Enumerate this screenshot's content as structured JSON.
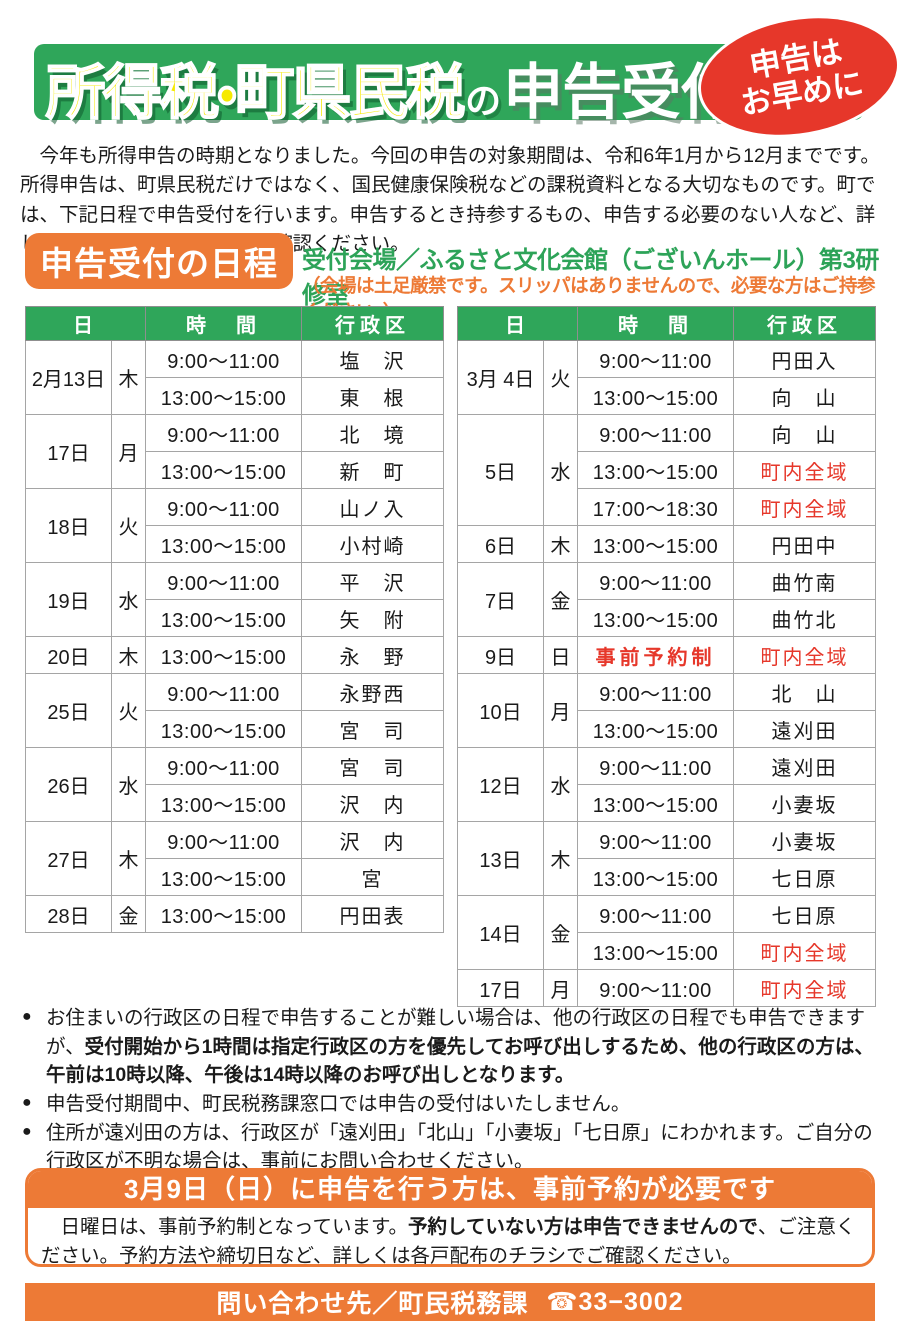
{
  "colors": {
    "green": "#2fa65a",
    "orange": "#ed7a36",
    "red": "#e6372a",
    "yellow": "#f6ea00"
  },
  "header": {
    "title_part_yellow": "所得税・町県民税",
    "title_part_no": "の",
    "title_part_white": "申告受付",
    "badge": {
      "line1": "申告は",
      "line2": "お早めに"
    }
  },
  "intro": "今年も所得申告の時期となりました。今回の申告の対象期間は、令和6年1月から12月までです。所得申告は、町県民税だけではなく、国民健康保険税などの課税資料となる大切なものです。町では、下記日程で申告受付を行います。申告するとき持参するもの、申告する必要のない人など、詳しくは各戸配布のチラシでご確認ください。",
  "schedule": {
    "heading": "申告受付の日程",
    "venue": "受付会場／ふるさと文化会館（ございんホール）第3研修室",
    "venue_note": "（会場は土足厳禁です。スリッパはありませんので、必要な方はご持参ください。）",
    "columns": {
      "day": "日",
      "time": "時　間",
      "district": "行政区"
    },
    "left_table": [
      {
        "date": "2月13日",
        "dow": "木",
        "slots": [
          {
            "time": "9:00〜11:00",
            "district": "塩　沢"
          },
          {
            "time": "13:00〜15:00",
            "district": "東　根"
          }
        ]
      },
      {
        "date": "17日",
        "dow": "月",
        "slots": [
          {
            "time": "9:00〜11:00",
            "district": "北　境"
          },
          {
            "time": "13:00〜15:00",
            "district": "新　町"
          }
        ]
      },
      {
        "date": "18日",
        "dow": "火",
        "slots": [
          {
            "time": "9:00〜11:00",
            "district": "山ノ入"
          },
          {
            "time": "13:00〜15:00",
            "district": "小村崎"
          }
        ]
      },
      {
        "date": "19日",
        "dow": "水",
        "slots": [
          {
            "time": "9:00〜11:00",
            "district": "平　沢"
          },
          {
            "time": "13:00〜15:00",
            "district": "矢　附"
          }
        ]
      },
      {
        "date": "20日",
        "dow": "木",
        "slots": [
          {
            "time": "13:00〜15:00",
            "district": "永　野"
          }
        ]
      },
      {
        "date": "25日",
        "dow": "火",
        "slots": [
          {
            "time": "9:00〜11:00",
            "district": "永野西"
          },
          {
            "time": "13:00〜15:00",
            "district": "宮　司"
          }
        ]
      },
      {
        "date": "26日",
        "dow": "水",
        "slots": [
          {
            "time": "9:00〜11:00",
            "district": "宮　司"
          },
          {
            "time": "13:00〜15:00",
            "district": "沢　内"
          }
        ]
      },
      {
        "date": "27日",
        "dow": "木",
        "slots": [
          {
            "time": "9:00〜11:00",
            "district": "沢　内"
          },
          {
            "time": "13:00〜15:00",
            "district": "宮"
          }
        ]
      },
      {
        "date": "28日",
        "dow": "金",
        "slots": [
          {
            "time": "13:00〜15:00",
            "district": "円田表"
          }
        ]
      }
    ],
    "right_table": [
      {
        "date": "3月 4日",
        "dow": "火",
        "slots": [
          {
            "time": "9:00〜11:00",
            "district": "円田入"
          },
          {
            "time": "13:00〜15:00",
            "district": "向　山"
          }
        ]
      },
      {
        "date": "5日",
        "dow": "水",
        "slots": [
          {
            "time": "9:00〜11:00",
            "district": "向　山"
          },
          {
            "time": "13:00〜15:00",
            "district": "町内全域",
            "red": true
          },
          {
            "time": "17:00〜18:30",
            "district": "町内全域",
            "red": true
          }
        ]
      },
      {
        "date": "6日",
        "dow": "木",
        "slots": [
          {
            "time": "13:00〜15:00",
            "district": "円田中"
          }
        ]
      },
      {
        "date": "7日",
        "dow": "金",
        "slots": [
          {
            "time": "9:00〜11:00",
            "district": "曲竹南"
          },
          {
            "time": "13:00〜15:00",
            "district": "曲竹北"
          }
        ]
      },
      {
        "date": "9日",
        "dow": "日",
        "slots": [
          {
            "time": "事前予約制",
            "time_red": true,
            "district": "町内全域",
            "red": true
          }
        ]
      },
      {
        "date": "10日",
        "dow": "月",
        "slots": [
          {
            "time": "9:00〜11:00",
            "district": "北　山"
          },
          {
            "time": "13:00〜15:00",
            "district": "遠刈田"
          }
        ]
      },
      {
        "date": "12日",
        "dow": "水",
        "slots": [
          {
            "time": "9:00〜11:00",
            "district": "遠刈田"
          },
          {
            "time": "13:00〜15:00",
            "district": "小妻坂"
          }
        ]
      },
      {
        "date": "13日",
        "dow": "木",
        "slots": [
          {
            "time": "9:00〜11:00",
            "district": "小妻坂"
          },
          {
            "time": "13:00〜15:00",
            "district": "七日原"
          }
        ]
      },
      {
        "date": "14日",
        "dow": "金",
        "slots": [
          {
            "time": "9:00〜11:00",
            "district": "七日原"
          },
          {
            "time": "13:00〜15:00",
            "district": "町内全域",
            "red": true
          }
        ]
      },
      {
        "date": "17日",
        "dow": "月",
        "slots": [
          {
            "time": "9:00〜11:00",
            "district": "町内全域",
            "red": true
          }
        ]
      }
    ]
  },
  "notes": [
    {
      "segments": [
        {
          "text": "お住まいの行政区の日程で申告することが難しい場合は、他の行政区の日程でも申告できますが、",
          "bold": false
        },
        {
          "text": "受付開始から1時間は指定行政区の方を優先してお呼び出しするため、他の行政区の方は、午前は10時以降、午後は14時以降のお呼び出しとなります。",
          "bold": true
        }
      ]
    },
    {
      "segments": [
        {
          "text": "申告受付期間中、町民税務課窓口では申告の受付はいたしません。",
          "bold": false
        }
      ]
    },
    {
      "segments": [
        {
          "text": "住所が遠刈田の方は、行政区が「遠刈田」「北山」「小妻坂」「七日原」にわかれます。ご自分の行政区が不明な場合は、事前にお問い合わせください。",
          "bold": false
        }
      ]
    }
  ],
  "reservation": {
    "title": "3月9日（日）に申告を行う方は、事前予約が必要です",
    "body_segments": [
      {
        "text": "日曜日は、事前予約制となっています。",
        "bold": false
      },
      {
        "text": "予約していない方は申告できませんので",
        "bold": true
      },
      {
        "text": "、ご注意ください。予約方法や締切日など、詳しくは各戸配布のチラシでご確認ください。",
        "bold": false
      }
    ]
  },
  "footer": {
    "label": "問い合わせ先／町民税務課",
    "phone": "☎33−3002"
  }
}
